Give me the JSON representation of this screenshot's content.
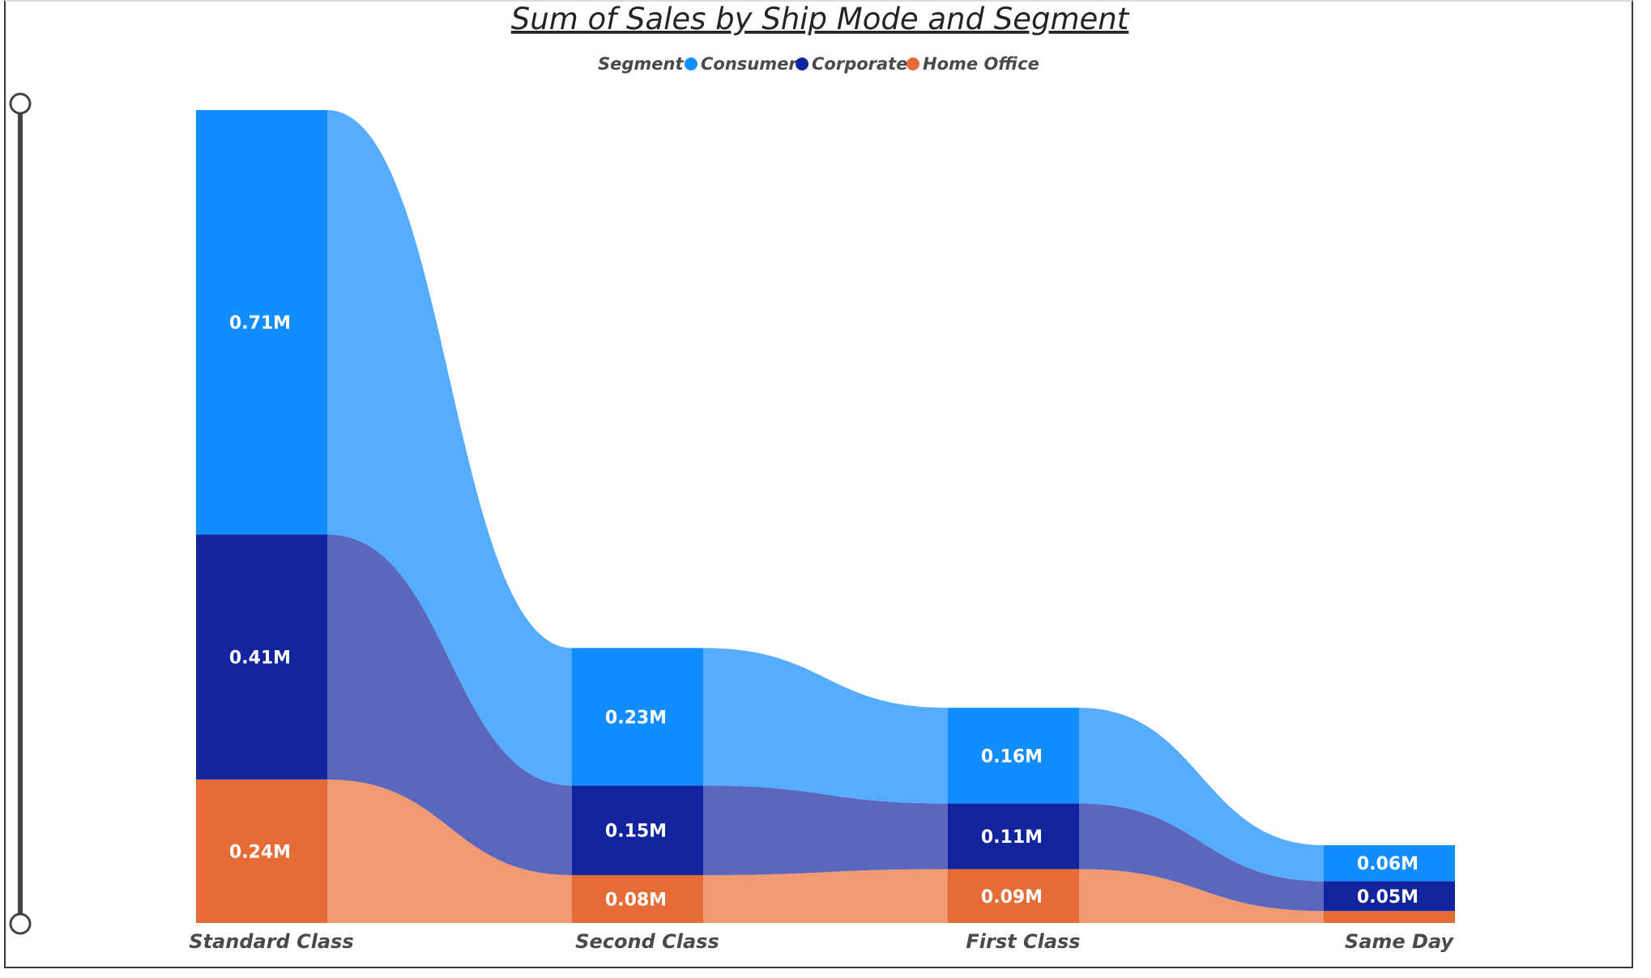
{
  "chart_data": {
    "type": "ribbon",
    "title": "Sum of Sales by Ship Mode and Segment",
    "legend_title": "Segment",
    "legend_position": "top-center",
    "categories": [
      "Standard Class",
      "Second Class",
      "First Class",
      "Same Day"
    ],
    "series": [
      {
        "name": "Home Office",
        "color": "#E66C37",
        "ribbon_color": "#F09A73",
        "values": [
          0.24,
          0.08,
          0.09,
          0.02
        ],
        "labels": [
          "0.24M",
          "0.08M",
          "0.09M",
          ""
        ]
      },
      {
        "name": "Corporate",
        "color": "#12239E",
        "ribbon_color": "#5B67BD",
        "values": [
          0.41,
          0.15,
          0.11,
          0.05
        ],
        "labels": [
          "0.41M",
          "0.15M",
          "0.11M",
          "0.05M"
        ]
      },
      {
        "name": "Consumer",
        "color": "#118DFF",
        "ribbon_color": "#56ADFF",
        "values": [
          0.71,
          0.23,
          0.16,
          0.06
        ],
        "labels": [
          "0.71M",
          "0.23M",
          "0.16M",
          "0.06M"
        ]
      }
    ],
    "legend_order": [
      "Consumer",
      "Corporate",
      "Home Office"
    ],
    "value_unit": "M",
    "ylim": [
      0,
      1.36
    ],
    "grid": false
  }
}
